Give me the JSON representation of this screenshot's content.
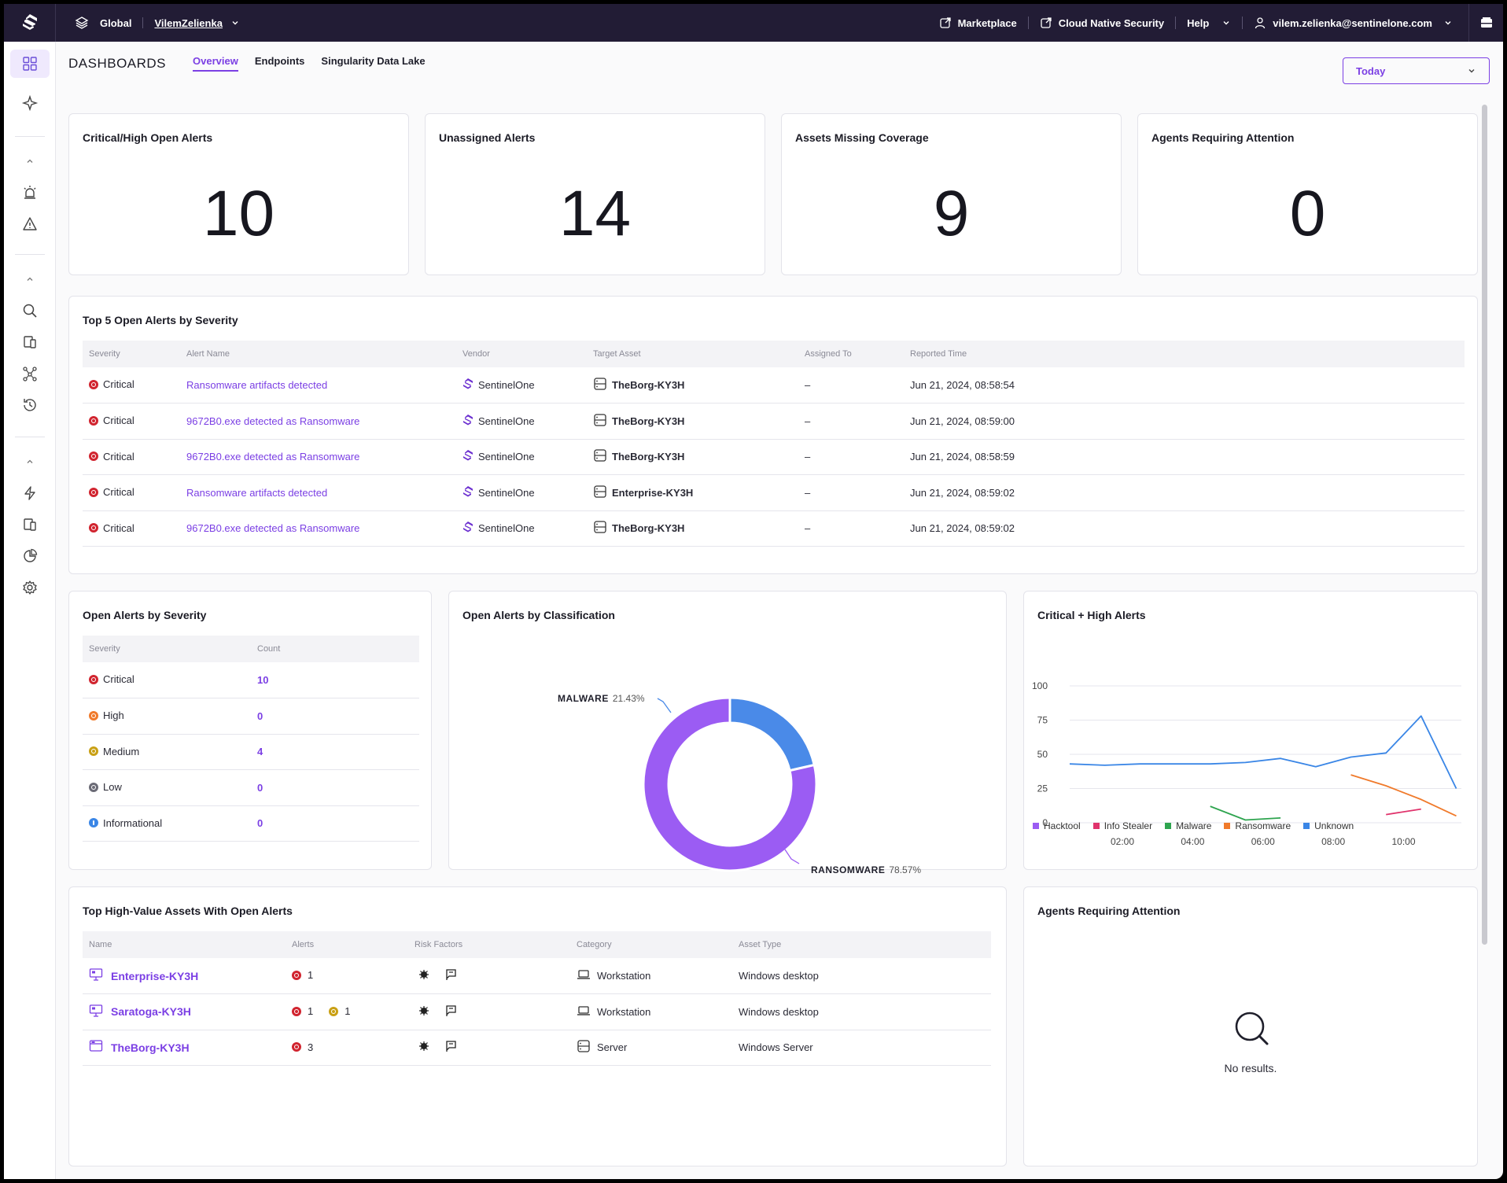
{
  "topbar": {
    "scope": "Global",
    "account": "VilemZelienka",
    "marketplace": "Marketplace",
    "cns": "Cloud Native Security",
    "help": "Help",
    "user": "vilem.zelienka@sentinelone.com"
  },
  "page": {
    "title": "DASHBOARDS",
    "tabs": [
      "Overview",
      "Endpoints",
      "Singularity Data Lake"
    ],
    "date_range": "Today"
  },
  "kpis": [
    {
      "label": "Critical/High Open Alerts",
      "value": "10"
    },
    {
      "label": "Unassigned Alerts",
      "value": "14"
    },
    {
      "label": "Assets Missing Coverage",
      "value": "9"
    },
    {
      "label": "Agents Requiring Attention",
      "value": "0"
    }
  ],
  "top_alerts": {
    "title": "Top 5 Open Alerts by Severity",
    "columns": [
      "Severity",
      "Alert Name",
      "Vendor",
      "Target Asset",
      "Assigned To",
      "Reported Time"
    ],
    "rows": [
      {
        "severity": "Critical",
        "name": "Ransomware artifacts detected",
        "vendor": "SentinelOne",
        "asset": "TheBorg-KY3H",
        "assigned": "–",
        "time": "Jun 21, 2024, 08:58:54"
      },
      {
        "severity": "Critical",
        "name": "9672B0.exe detected as Ransomware",
        "vendor": "SentinelOne",
        "asset": "TheBorg-KY3H",
        "assigned": "–",
        "time": "Jun 21, 2024, 08:59:00"
      },
      {
        "severity": "Critical",
        "name": "9672B0.exe detected as Ransomware",
        "vendor": "SentinelOne",
        "asset": "TheBorg-KY3H",
        "assigned": "–",
        "time": "Jun 21, 2024, 08:58:59"
      },
      {
        "severity": "Critical",
        "name": "Ransomware artifacts detected",
        "vendor": "SentinelOne",
        "asset": "Enterprise-KY3H",
        "assigned": "–",
        "time": "Jun 21, 2024, 08:59:02"
      },
      {
        "severity": "Critical",
        "name": "9672B0.exe detected as Ransomware",
        "vendor": "SentinelOne",
        "asset": "TheBorg-KY3H",
        "assigned": "–",
        "time": "Jun 21, 2024, 08:59:02"
      }
    ]
  },
  "severity_table": {
    "title": "Open Alerts by Severity",
    "columns": [
      "Severity",
      "Count"
    ],
    "rows": [
      {
        "severity": "Critical",
        "count": "10",
        "color": "#d1242f"
      },
      {
        "severity": "High",
        "count": "0",
        "color": "#f07a2b"
      },
      {
        "severity": "Medium",
        "count": "4",
        "color": "#c9a014"
      },
      {
        "severity": "Low",
        "count": "0",
        "color": "#6b6b76"
      },
      {
        "severity": "Informational",
        "count": "0",
        "color": "#3a86e6"
      }
    ]
  },
  "classification": {
    "title": "Open Alerts by Classification",
    "slices": [
      {
        "label": "MALWARE",
        "pct_text": "21.43%",
        "value": 21.43,
        "color": "#4a8ae8"
      },
      {
        "label": "RANSOMWARE",
        "pct_text": "78.57%",
        "value": 78.57,
        "color": "#9b5cf3"
      }
    ]
  },
  "chart_data": {
    "type": "line",
    "title": "Critical + High Alerts",
    "ylim": [
      0,
      100
    ],
    "yticks": [
      "100",
      "75",
      "50",
      "25",
      "0"
    ],
    "xticks": [
      "02:00",
      "04:00",
      "06:00",
      "08:00",
      "10:00"
    ],
    "x_range_hours": [
      0.5,
      11.6
    ],
    "series": [
      {
        "name": "Hacktool",
        "color": "#9b5cf3",
        "points": []
      },
      {
        "name": "Info Stealer",
        "color": "#e0336c",
        "points": [
          [
            9.5,
            6
          ],
          [
            10.5,
            10
          ]
        ]
      },
      {
        "name": "Malware",
        "color": "#2ea44f",
        "points": [
          [
            4.5,
            12
          ],
          [
            5.5,
            2
          ],
          [
            6.5,
            3.5
          ]
        ]
      },
      {
        "name": "Ransomware",
        "color": "#f07a2b",
        "points": [
          [
            8.5,
            35
          ],
          [
            9.5,
            27
          ],
          [
            10.5,
            17
          ],
          [
            11.5,
            5
          ]
        ]
      },
      {
        "name": "Unknown",
        "color": "#3a86e6",
        "points": [
          [
            0.5,
            43
          ],
          [
            1.5,
            42
          ],
          [
            2.5,
            43
          ],
          [
            3.5,
            43
          ],
          [
            4.5,
            43
          ],
          [
            5.5,
            44
          ],
          [
            6.5,
            47
          ],
          [
            7.5,
            41
          ],
          [
            8.5,
            48
          ],
          [
            9.5,
            51
          ],
          [
            10.5,
            78
          ],
          [
            11.5,
            25
          ]
        ]
      }
    ]
  },
  "assets": {
    "title": "Top High-Value Assets With Open Alerts",
    "columns": [
      "Name",
      "Alerts",
      "Risk Factors",
      "Category",
      "Asset Type"
    ],
    "rows": [
      {
        "name": "Enterprise-KY3H",
        "crit": "1",
        "med": "",
        "category": "Workstation",
        "type": "Windows desktop"
      },
      {
        "name": "Saratoga-KY3H",
        "crit": "1",
        "med": "1",
        "category": "Workstation",
        "type": "Windows desktop"
      },
      {
        "name": "TheBorg-KY3H",
        "crit": "3",
        "med": "",
        "category": "Server",
        "type": "Windows Server"
      }
    ]
  },
  "agents": {
    "title": "Agents Requiring Attention",
    "empty": "No results."
  }
}
